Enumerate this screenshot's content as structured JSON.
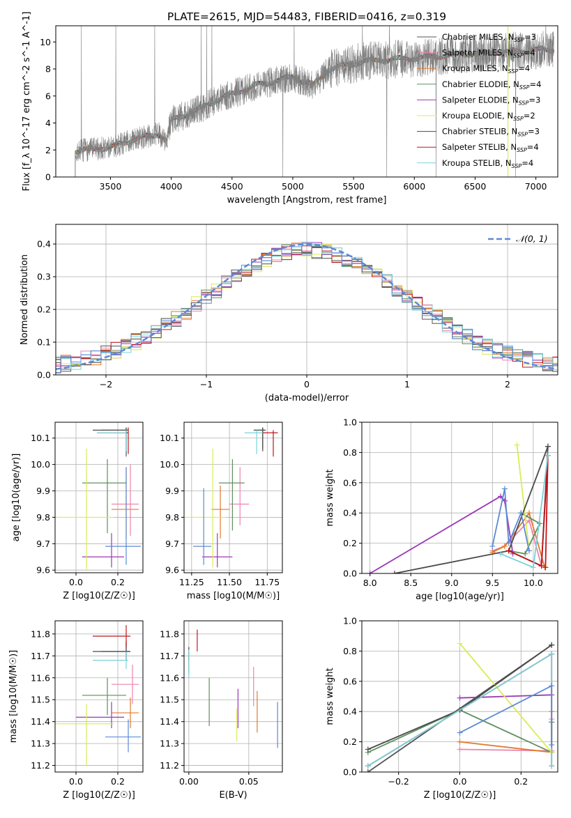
{
  "figure": {
    "title": "PLATE=2615, MJD=54483, FIBERID=0416, z=0.319"
  },
  "colors": {
    "c1": "#555555",
    "c2": "#ee82ad",
    "c3": "#e07b2a",
    "c4": "#5e8f5e",
    "c5": "#9b37b8",
    "c6": "#d9ec55",
    "c7": "#4a4a4a",
    "c8": "#c0141c",
    "c9": "#79d2da",
    "c10": "#5b8ad6",
    "grid": "#b0b0b0",
    "spec": "#7f7f7f"
  },
  "chart_data": [
    {
      "id": "spectrum",
      "type": "line",
      "xlabel": "wavelength [Angstrom, rest frame]",
      "ylabel": "Flux [f_λ 10^-17 erg cm^-2 s^-1 A^-1]",
      "xlim": [
        3050,
        7180
      ],
      "ylim": [
        0,
        11.2
      ],
      "xticks": [
        "3500",
        "4000",
        "4500",
        "5000",
        "5500",
        "6000",
        "6500",
        "7000"
      ],
      "yticks": [
        "0",
        "2",
        "4",
        "6",
        "8",
        "10"
      ],
      "legend_position": "right",
      "legend": [
        {
          "name": "Chabrier MILES, N_SSP=3",
          "color": "c1"
        },
        {
          "name": "Salpeter MILES, N_SSP=4",
          "color": "c2"
        },
        {
          "name": "Kroupa MILES, N_SSP=4",
          "color": "c3"
        },
        {
          "name": "Chabrier ELODIE, N_SSP=4",
          "color": "c4"
        },
        {
          "name": "Salpeter ELODIE, N_SSP=3",
          "color": "c5"
        },
        {
          "name": "Kroupa ELODIE, N_SSP=2",
          "color": "c6"
        },
        {
          "name": "Chabrier STELIB, N_SSP=3",
          "color": "c7"
        },
        {
          "name": "Salpeter STELIB, N_SSP=4",
          "color": "c8"
        },
        {
          "name": "Kroupa STELIB, N_SSP=4",
          "color": "c9"
        }
      ],
      "continuum": [
        [
          3200,
          0
        ],
        [
          3210,
          1.9
        ],
        [
          3300,
          2.0
        ],
        [
          3500,
          2.2
        ],
        [
          3700,
          2.8
        ],
        [
          3900,
          3.2
        ],
        [
          3960,
          2.6
        ],
        [
          4000,
          4.2
        ],
        [
          4200,
          4.9
        ],
        [
          4400,
          5.8
        ],
        [
          4700,
          6.8
        ],
        [
          5000,
          7.4
        ],
        [
          5170,
          6.8
        ],
        [
          5300,
          8.0
        ],
        [
          5600,
          8.6
        ],
        [
          6000,
          8.8
        ],
        [
          6400,
          9.1
        ],
        [
          7000,
          9.4
        ],
        [
          7150,
          9.4
        ]
      ],
      "noise_amplitude": 0.8
    },
    {
      "id": "residuals",
      "type": "histogram",
      "xlabel": "(data-model)/error",
      "ylabel": "Normed distribution",
      "xlim": [
        -2.5,
        2.5
      ],
      "ylim": [
        0,
        0.46
      ],
      "xticks": [
        "−2",
        "−1",
        "0",
        "1",
        "2"
      ],
      "yticks": [
        "0.0",
        "0.1",
        "0.2",
        "0.3",
        "0.4"
      ],
      "legend": "𝒩(0, 1)",
      "legend_position": "top-right",
      "bin_width": 0.1
    },
    {
      "id": "age_vs_Z",
      "type": "errorbar",
      "xlabel": "Z [log10(Z/Z☉)]",
      "ylabel": "age  [log10(age/yr)]",
      "xlim": [
        -0.1,
        0.32
      ],
      "ylim": [
        9.59,
        10.16
      ],
      "xticks": [
        "0.0",
        "0.2"
      ],
      "yticks": [
        "9.6",
        "9.7",
        "9.8",
        "9.9",
        "10.0",
        "10.1"
      ],
      "points": [
        {
          "c": "c1",
          "x": 0.24,
          "y": 10.13,
          "ex": [
            0.12,
            0.24
          ],
          "ey": [
            10.03,
            10.14
          ]
        },
        {
          "c": "c2",
          "x": 0.26,
          "y": 9.85,
          "ex": [
            0.17,
            0.3
          ],
          "ey": [
            9.73,
            10.0
          ]
        },
        {
          "c": "c3",
          "x": 0.24,
          "y": 9.83,
          "ex": [
            0.17,
            0.3
          ],
          "ey": [
            9.72,
            9.99
          ]
        },
        {
          "c": "c4",
          "x": 0.15,
          "y": 9.93,
          "ex": [
            0.03,
            0.24
          ],
          "ey": [
            9.74,
            10.02
          ]
        },
        {
          "c": "c5",
          "x": 0.17,
          "y": 9.65,
          "ex": [
            0.03,
            0.23
          ],
          "ey": [
            9.61,
            9.74
          ]
        },
        {
          "c": "c6",
          "x": 0.05,
          "y": 9.8,
          "ex": [
            -0.1,
            0.18
          ],
          "ey": [
            9.6,
            10.06
          ]
        },
        {
          "c": "c7",
          "x": 0.24,
          "y": 10.13,
          "ex": [
            0.08,
            0.25
          ],
          "ey": [
            10.05,
            10.14
          ]
        },
        {
          "c": "c8",
          "x": 0.25,
          "y": 10.12,
          "ex": [
            0.1,
            0.25
          ],
          "ey": [
            10.04,
            10.14
          ]
        },
        {
          "c": "c9",
          "x": 0.24,
          "y": 10.12,
          "ex": [
            0.1,
            0.24
          ],
          "ey": [
            10.05,
            10.13
          ]
        },
        {
          "c": "c10",
          "x": 0.24,
          "y": 9.69,
          "ex": [
            0.14,
            0.31
          ],
          "ey": [
            9.62,
            9.99
          ]
        }
      ]
    },
    {
      "id": "age_vs_mass",
      "type": "errorbar",
      "xlabel": "mass [log10(M/M☉)]",
      "ylabel": "",
      "xlim": [
        11.2,
        11.85
      ],
      "ylim": [
        9.59,
        10.16
      ],
      "xticks": [
        "11.25",
        "11.50",
        "11.75"
      ],
      "yticks": [
        "9.6",
        "9.7",
        "9.8",
        "9.9",
        "10.0",
        "10.1"
      ],
      "points": [
        {
          "c": "c1",
          "x": 11.72,
          "y": 10.13,
          "ex": [
            11.67,
            11.73
          ],
          "ey": [
            10.06,
            10.14
          ]
        },
        {
          "c": "c2",
          "x": 11.57,
          "y": 9.85,
          "ex": [
            11.5,
            11.63
          ],
          "ey": [
            9.77,
            9.99
          ]
        },
        {
          "c": "c3",
          "x": 11.44,
          "y": 9.83,
          "ex": [
            11.38,
            11.5
          ],
          "ey": [
            9.72,
            9.92
          ]
        },
        {
          "c": "c4",
          "x": 11.52,
          "y": 9.93,
          "ex": [
            11.43,
            11.6
          ],
          "ey": [
            9.75,
            10.02
          ]
        },
        {
          "c": "c5",
          "x": 11.42,
          "y": 9.65,
          "ex": [
            11.32,
            11.52
          ],
          "ey": [
            9.61,
            9.74
          ]
        },
        {
          "c": "c6",
          "x": 11.39,
          "y": 9.8,
          "ex": [
            11.2,
            11.48
          ],
          "ey": [
            9.61,
            10.06
          ]
        },
        {
          "c": "c7",
          "x": 11.72,
          "y": 10.13,
          "ex": [
            11.66,
            11.74
          ],
          "ey": [
            10.05,
            10.14
          ]
        },
        {
          "c": "c8",
          "x": 11.79,
          "y": 10.12,
          "ex": [
            11.72,
            11.82
          ],
          "ey": [
            10.03,
            10.13
          ]
        },
        {
          "c": "c9",
          "x": 11.68,
          "y": 10.12,
          "ex": [
            11.6,
            11.72
          ],
          "ey": [
            10.04,
            10.13
          ]
        },
        {
          "c": "c10",
          "x": 11.33,
          "y": 9.69,
          "ex": [
            11.26,
            11.38
          ],
          "ey": [
            9.62,
            9.91
          ]
        }
      ]
    },
    {
      "id": "weight_vs_age",
      "type": "line",
      "xlabel": "age  [log10(age/yr)]",
      "ylabel": "mass weight",
      "xlim": [
        7.9,
        10.3
      ],
      "ylim": [
        0,
        1
      ],
      "xticks": [
        "8.0",
        "8.5",
        "9.0",
        "9.5",
        "10.0"
      ],
      "yticks": [
        "0.0",
        "0.2",
        "0.4",
        "0.6",
        "0.8",
        "1.0"
      ],
      "series": [
        {
          "c": "c1",
          "pts": [
            [
              9.7,
              0.15
            ],
            [
              10.1,
              0.05
            ],
            [
              10.18,
              0.84
            ]
          ]
        },
        {
          "c": "c2",
          "pts": [
            [
              9.5,
              0.15
            ],
            [
              9.65,
              0.18
            ],
            [
              9.95,
              0.35
            ],
            [
              10.1,
              0.05
            ]
          ]
        },
        {
          "c": "c3",
          "pts": [
            [
              9.5,
              0.14
            ],
            [
              9.65,
              0.18
            ],
            [
              9.95,
              0.4
            ],
            [
              10.14,
              0.04
            ]
          ]
        },
        {
          "c": "c4",
          "pts": [
            [
              9.7,
              0.15
            ],
            [
              9.9,
              0.13
            ],
            [
              10.08,
              0.33
            ],
            [
              9.85,
              0.4
            ]
          ]
        },
        {
          "c": "c5",
          "pts": [
            [
              8.0,
              0.0
            ],
            [
              9.6,
              0.51
            ],
            [
              9.65,
              0.48
            ],
            [
              9.75,
              0.13
            ]
          ]
        },
        {
          "c": "c6",
          "pts": [
            [
              9.8,
              0.85
            ],
            [
              9.95,
              0.15
            ]
          ]
        },
        {
          "c": "c7",
          "pts": [
            [
              8.3,
              0.0
            ],
            [
              9.7,
              0.15
            ],
            [
              10.18,
              0.84
            ]
          ]
        },
        {
          "c": "c8",
          "pts": [
            [
              9.7,
              0.15
            ],
            [
              10.1,
              0.05
            ],
            [
              10.18,
              0.78
            ],
            [
              10.15,
              0.04
            ]
          ]
        },
        {
          "c": "c9",
          "pts": [
            [
              9.6,
              0.13
            ],
            [
              10.0,
              0.04
            ],
            [
              10.18,
              0.78
            ]
          ]
        },
        {
          "c": "c10",
          "pts": [
            [
              9.5,
              0.18
            ],
            [
              9.65,
              0.56
            ],
            [
              9.7,
              0.2
            ],
            [
              9.85,
              0.4
            ],
            [
              9.95,
              0.15
            ]
          ]
        }
      ]
    },
    {
      "id": "mass_vs_Z",
      "type": "errorbar",
      "xlabel": "Z [log10(Z/Z☉)]",
      "ylabel": "mass [log10(M/M☉)]",
      "xlim": [
        -0.1,
        0.32
      ],
      "ylim": [
        11.17,
        11.86
      ],
      "xticks": [
        "0.0",
        "0.2"
      ],
      "yticks": [
        "11.2",
        "11.3",
        "11.4",
        "11.5",
        "11.6",
        "11.7",
        "11.8"
      ],
      "points": [
        {
          "c": "c1",
          "x": 0.24,
          "y": 11.72,
          "ex": [
            0.12,
            0.26
          ],
          "ey": [
            11.68,
            11.76
          ]
        },
        {
          "c": "c2",
          "x": 0.27,
          "y": 11.57,
          "ex": [
            0.17,
            0.3
          ],
          "ey": [
            11.48,
            11.66
          ]
        },
        {
          "c": "c3",
          "x": 0.26,
          "y": 11.44,
          "ex": [
            0.17,
            0.3
          ],
          "ey": [
            11.37,
            11.51
          ]
        },
        {
          "c": "c4",
          "x": 0.15,
          "y": 11.52,
          "ex": [
            0.03,
            0.24
          ],
          "ey": [
            11.43,
            11.6
          ]
        },
        {
          "c": "c5",
          "x": 0.17,
          "y": 11.42,
          "ex": [
            0.0,
            0.23
          ],
          "ey": [
            11.37,
            11.49
          ]
        },
        {
          "c": "c6",
          "x": 0.05,
          "y": 11.39,
          "ex": [
            -0.1,
            0.18
          ],
          "ey": [
            11.2,
            11.48
          ]
        },
        {
          "c": "c7",
          "x": 0.24,
          "y": 11.72,
          "ex": [
            0.08,
            0.26
          ],
          "ey": [
            11.68,
            11.77
          ]
        },
        {
          "c": "c8",
          "x": 0.24,
          "y": 11.79,
          "ex": [
            0.08,
            0.26
          ],
          "ey": [
            11.74,
            11.84
          ]
        },
        {
          "c": "c9",
          "x": 0.24,
          "y": 11.68,
          "ex": [
            0.08,
            0.25
          ],
          "ey": [
            11.64,
            11.72
          ]
        },
        {
          "c": "c10",
          "x": 0.25,
          "y": 11.33,
          "ex": [
            0.14,
            0.31
          ],
          "ey": [
            11.26,
            11.41
          ]
        }
      ]
    },
    {
      "id": "mass_vs_ebv",
      "type": "errorbar",
      "xlabel": "E(B-V)",
      "ylabel": "",
      "xlim": [
        -0.004,
        0.078
      ],
      "ylim": [
        11.17,
        11.86
      ],
      "xticks": [
        "0.00",
        "0.05"
      ],
      "yticks": [
        "11.2",
        "11.3",
        "11.4",
        "11.5",
        "11.6",
        "11.7",
        "11.8"
      ],
      "points": [
        {
          "c": "c1",
          "x": 0.0,
          "y": 11.72,
          "ey": [
            11.68,
            11.74
          ]
        },
        {
          "c": "c2",
          "x": 0.054,
          "y": 11.57,
          "ey": [
            11.47,
            11.65
          ]
        },
        {
          "c": "c3",
          "x": 0.057,
          "y": 11.44,
          "ey": [
            11.35,
            11.54
          ]
        },
        {
          "c": "c4",
          "x": 0.017,
          "y": 11.52,
          "ey": [
            11.38,
            11.6
          ]
        },
        {
          "c": "c5",
          "x": 0.041,
          "y": 11.42,
          "ey": [
            11.37,
            11.55
          ]
        },
        {
          "c": "c6",
          "x": 0.04,
          "y": 11.39,
          "ey": [
            11.31,
            11.46
          ]
        },
        {
          "c": "c7",
          "x": 0.0,
          "y": 11.72,
          "ey": [
            11.62,
            11.74
          ]
        },
        {
          "c": "c8",
          "x": 0.007,
          "y": 11.79,
          "ey": [
            11.72,
            11.82
          ]
        },
        {
          "c": "c9",
          "x": 0.0,
          "y": 11.68,
          "ey": [
            11.6,
            11.73
          ]
        },
        {
          "c": "c10",
          "x": 0.074,
          "y": 11.33,
          "ey": [
            11.28,
            11.49
          ]
        }
      ]
    },
    {
      "id": "weight_vs_Z",
      "type": "line",
      "xlabel": "Z [log10(Z/Z☉)]",
      "ylabel": "mass weight",
      "xlim": [
        -0.32,
        0.32
      ],
      "ylim": [
        0,
        1
      ],
      "xticks": [
        "−0.2",
        "0.0",
        "0.2"
      ],
      "yticks": [
        "0.0",
        "0.2",
        "0.4",
        "0.6",
        "0.8",
        "1.0"
      ],
      "series": [
        {
          "c": "c1",
          "pts": [
            [
              -0.3,
              0.0
            ],
            [
              0.3,
              0.84
            ]
          ]
        },
        {
          "c": "c2",
          "pts": [
            [
              0.0,
              0.15
            ],
            [
              0.3,
              0.14
            ],
            [
              0.3,
              0.35
            ]
          ]
        },
        {
          "c": "c3",
          "pts": [
            [
              0.0,
              0.2
            ],
            [
              0.3,
              0.13
            ],
            [
              0.3,
              0.4
            ]
          ]
        },
        {
          "c": "c4",
          "pts": [
            [
              -0.3,
              0.13
            ],
            [
              0.0,
              0.41
            ],
            [
              0.3,
              0.13
            ],
            [
              0.3,
              0.33
            ]
          ]
        },
        {
          "c": "c5",
          "pts": [
            [
              0.0,
              0.49
            ],
            [
              0.3,
              0.51
            ]
          ]
        },
        {
          "c": "c6",
          "pts": [
            [
              0.0,
              0.85
            ],
            [
              0.3,
              0.13
            ]
          ]
        },
        {
          "c": "c7",
          "pts": [
            [
              -0.3,
              0.15
            ],
            [
              0.0,
              0.41
            ],
            [
              0.3,
              0.84
            ]
          ]
        },
        {
          "c": "c8",
          "pts": [
            [
              -0.3,
              0.04
            ],
            [
              0.3,
              0.78
            ],
            [
              0.3,
              0.04
            ]
          ]
        },
        {
          "c": "c9",
          "pts": [
            [
              -0.3,
              0.04
            ],
            [
              0.3,
              0.78
            ],
            [
              0.3,
              0.04
            ]
          ]
        },
        {
          "c": "c10",
          "pts": [
            [
              0.0,
              0.26
            ],
            [
              0.3,
              0.57
            ],
            [
              0.3,
              0.18
            ]
          ]
        }
      ]
    }
  ]
}
